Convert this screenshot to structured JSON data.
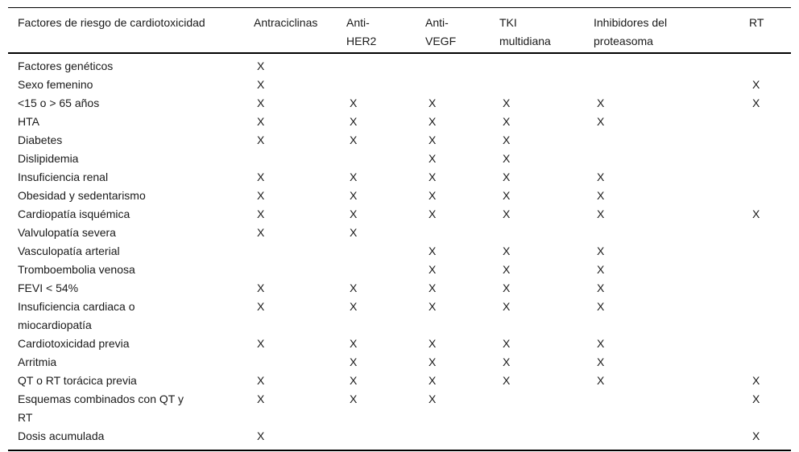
{
  "table": {
    "mark": "X",
    "columns": [
      {
        "lines": [
          "Factores de riesgo de cardiotoxicidad"
        ]
      },
      {
        "lines": [
          "Antraciclinas"
        ]
      },
      {
        "lines": [
          "Anti-",
          "HER2"
        ]
      },
      {
        "lines": [
          "Anti-",
          "VEGF"
        ]
      },
      {
        "lines": [
          "TKI",
          "multidiana"
        ]
      },
      {
        "lines": [
          "Inhibidores del",
          "proteasoma"
        ]
      },
      {
        "lines": [
          "RT"
        ]
      }
    ],
    "rows": [
      {
        "label_lines": [
          "Factores genéticos"
        ],
        "cells": [
          "X",
          "",
          "",
          "",
          "",
          ""
        ]
      },
      {
        "label_lines": [
          "Sexo femenino"
        ],
        "cells": [
          "X",
          "",
          "",
          "",
          "",
          "X"
        ]
      },
      {
        "label_lines": [
          "<15 o > 65 años"
        ],
        "cells": [
          "X",
          "X",
          "X",
          "X",
          "X",
          "X"
        ]
      },
      {
        "label_lines": [
          "HTA"
        ],
        "cells": [
          "X",
          "X",
          "X",
          "X",
          "X",
          ""
        ]
      },
      {
        "label_lines": [
          "Diabetes"
        ],
        "cells": [
          "X",
          "X",
          "X",
          "X",
          "",
          ""
        ]
      },
      {
        "label_lines": [
          "Dislipidemia"
        ],
        "cells": [
          "",
          "",
          "X",
          "X",
          "",
          ""
        ]
      },
      {
        "label_lines": [
          "Insuficiencia renal"
        ],
        "cells": [
          "X",
          "X",
          "X",
          "X",
          "X",
          ""
        ]
      },
      {
        "label_lines": [
          "Obesidad y sedentarismo"
        ],
        "cells": [
          "X",
          "X",
          "X",
          "X",
          "X",
          ""
        ]
      },
      {
        "label_lines": [
          "Cardiopatía isquémica"
        ],
        "cells": [
          "X",
          "X",
          "X",
          "X",
          "X",
          "X"
        ]
      },
      {
        "label_lines": [
          "Valvulopatía severa"
        ],
        "cells": [
          "X",
          "X",
          "",
          "",
          "",
          ""
        ]
      },
      {
        "label_lines": [
          "Vasculopatía arterial"
        ],
        "cells": [
          "",
          "",
          "X",
          "X",
          "X",
          ""
        ]
      },
      {
        "label_lines": [
          "Tromboembolia venosa"
        ],
        "cells": [
          "",
          "",
          "X",
          "X",
          "X",
          ""
        ]
      },
      {
        "label_lines": [
          "FEVI < 54%"
        ],
        "cells": [
          "X",
          "X",
          "X",
          "X",
          "X",
          ""
        ]
      },
      {
        "label_lines": [
          "Insuficiencia cardiaca o",
          "miocardiopatía"
        ],
        "cells": [
          "X",
          "X",
          "X",
          "X",
          "X",
          ""
        ]
      },
      {
        "label_lines": [
          "Cardiotoxicidad previa"
        ],
        "cells": [
          "X",
          "X",
          "X",
          "X",
          "X",
          ""
        ]
      },
      {
        "label_lines": [
          "Arritmia"
        ],
        "cells": [
          "",
          "X",
          "X",
          "X",
          "X",
          ""
        ]
      },
      {
        "label_lines": [
          "QT o RT torácica previa"
        ],
        "cells": [
          "X",
          "X",
          "X",
          "X",
          "X",
          "X"
        ]
      },
      {
        "label_lines": [
          "Esquemas combinados con QT y",
          "RT"
        ],
        "cells": [
          "X",
          "X",
          "X",
          "",
          "",
          "X"
        ]
      },
      {
        "label_lines": [
          "Dosis acumulada"
        ],
        "cells": [
          "X",
          "",
          "",
          "",
          "",
          "X"
        ]
      }
    ]
  }
}
